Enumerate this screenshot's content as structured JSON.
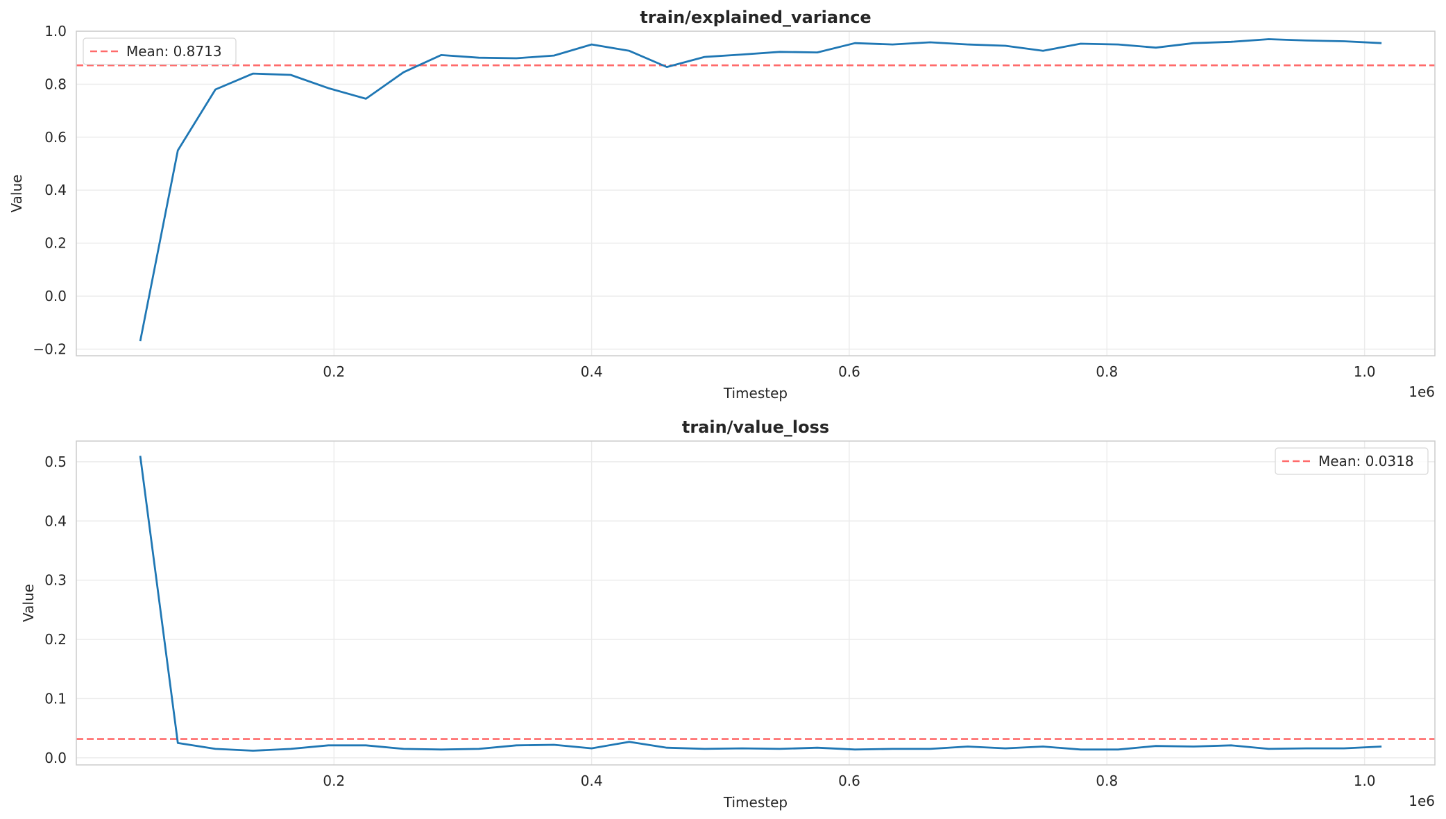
{
  "chart_data": [
    {
      "type": "line",
      "title": "train/explained_variance",
      "xlabel": "Timestep",
      "ylabel": "Value",
      "x_offset_label": "1e6",
      "xlim": [
        0.0,
        1.0546
      ],
      "ylim": [
        -0.225,
        1.0
      ],
      "xticks": [
        0.2,
        0.4,
        0.6,
        0.8,
        1.0
      ],
      "xtick_labels": [
        "0.2",
        "0.4",
        "0.6",
        "0.8",
        "1.0"
      ],
      "yticks": [
        -0.2,
        0.0,
        0.2,
        0.4,
        0.6,
        0.8,
        1.0
      ],
      "ytick_labels": [
        "−0.2",
        "0.0",
        "0.2",
        "0.4",
        "0.6",
        "0.8",
        "1.0"
      ],
      "grid": true,
      "legend_position": "upper left",
      "legend_label": "Mean: 0.8713",
      "mean": 0.8713,
      "colors": {
        "line": "#1f77b4",
        "mean": "#ff6b6b"
      },
      "series": [
        {
          "x": [
            0.0496,
            0.0788,
            0.108,
            0.1372,
            0.1664,
            0.1956,
            0.2248,
            0.254,
            0.2832,
            0.3124,
            0.3416,
            0.3708,
            0.4,
            0.4292,
            0.4584,
            0.4876,
            0.5168,
            0.546,
            0.5752,
            0.6044,
            0.6336,
            0.6628,
            0.692,
            0.7212,
            0.7504,
            0.7796,
            0.8088,
            0.838,
            0.8672,
            0.8964,
            0.9256,
            0.9548,
            0.984,
            1.0132
          ],
          "values": [
            -0.17,
            0.55,
            0.78,
            0.84,
            0.835,
            0.785,
            0.745,
            0.845,
            0.91,
            0.9,
            0.898,
            0.908,
            0.95,
            0.926,
            0.865,
            0.903,
            0.912,
            0.922,
            0.92,
            0.955,
            0.95,
            0.958,
            0.95,
            0.945,
            0.926,
            0.953,
            0.95,
            0.938,
            0.955,
            0.96,
            0.97,
            0.965,
            0.962,
            0.955
          ]
        }
      ]
    },
    {
      "type": "line",
      "title": "train/value_loss",
      "xlabel": "Timestep",
      "ylabel": "Value",
      "x_offset_label": "1e6",
      "xlim": [
        0.0,
        1.0546
      ],
      "ylim": [
        -0.012,
        0.535
      ],
      "xticks": [
        0.2,
        0.4,
        0.6,
        0.8,
        1.0
      ],
      "xtick_labels": [
        "0.2",
        "0.4",
        "0.6",
        "0.8",
        "1.0"
      ],
      "yticks": [
        0.0,
        0.1,
        0.2,
        0.3,
        0.4,
        0.5
      ],
      "ytick_labels": [
        "0.0",
        "0.1",
        "0.2",
        "0.3",
        "0.4",
        "0.5"
      ],
      "grid": true,
      "legend_position": "upper right",
      "legend_label": "Mean: 0.0318",
      "mean": 0.0318,
      "colors": {
        "line": "#1f77b4",
        "mean": "#ff6b6b"
      },
      "series": [
        {
          "x": [
            0.0496,
            0.0788,
            0.108,
            0.1372,
            0.1664,
            0.1956,
            0.2248,
            0.254,
            0.2832,
            0.3124,
            0.3416,
            0.3708,
            0.4,
            0.4292,
            0.4584,
            0.4876,
            0.5168,
            0.546,
            0.5752,
            0.6044,
            0.6336,
            0.6628,
            0.692,
            0.7212,
            0.7504,
            0.7796,
            0.8088,
            0.838,
            0.8672,
            0.8964,
            0.9256,
            0.9548,
            0.984,
            1.0132
          ],
          "values": [
            0.51,
            0.025,
            0.015,
            0.012,
            0.015,
            0.021,
            0.021,
            0.015,
            0.014,
            0.015,
            0.021,
            0.022,
            0.016,
            0.027,
            0.017,
            0.015,
            0.016,
            0.015,
            0.017,
            0.014,
            0.015,
            0.015,
            0.019,
            0.016,
            0.019,
            0.014,
            0.014,
            0.02,
            0.019,
            0.021,
            0.015,
            0.016,
            0.016,
            0.019
          ]
        }
      ]
    }
  ]
}
